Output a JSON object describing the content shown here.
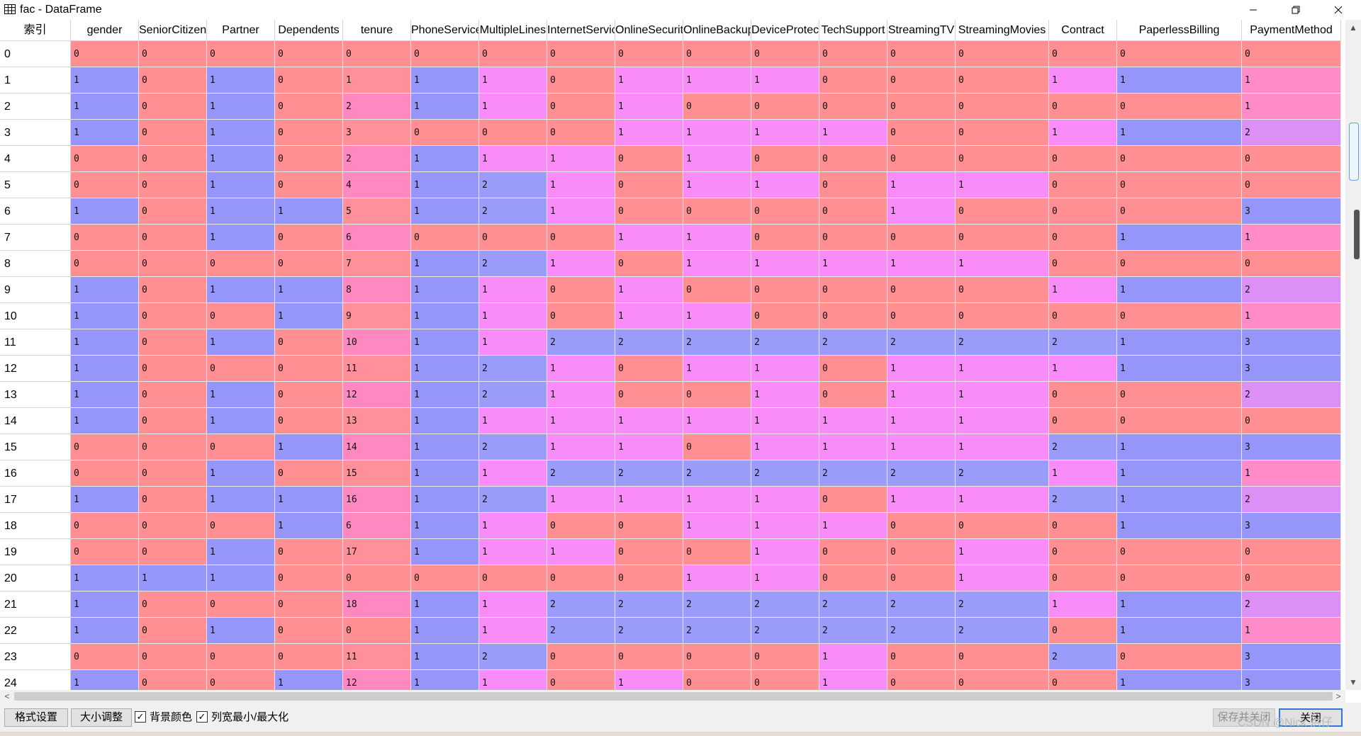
{
  "window": {
    "title": "fac - DataFrame",
    "icon": "table-icon"
  },
  "table": {
    "index_header": "索引",
    "columns": [
      "gender",
      "SeniorCitizen",
      "Partner",
      "Dependents",
      "tenure",
      "PhoneService",
      "MultipleLines",
      "InternetService",
      "OnlineSecurity",
      "OnlineBackup",
      "DeviceProtection",
      "TechSupport",
      "StreamingTV",
      "StreamingMovies",
      "Contract",
      "PaperlessBilling",
      "PaymentMethod"
    ],
    "rows": [
      {
        "index": "0",
        "values": [
          "0",
          "0",
          "0",
          "0",
          "0",
          "0",
          "0",
          "0",
          "0",
          "0",
          "0",
          "0",
          "0",
          "0",
          "0",
          "0",
          "0"
        ]
      },
      {
        "index": "1",
        "values": [
          "1",
          "0",
          "1",
          "0",
          "1",
          "1",
          "1",
          "0",
          "1",
          "1",
          "1",
          "0",
          "0",
          "0",
          "1",
          "1",
          "1"
        ]
      },
      {
        "index": "2",
        "values": [
          "1",
          "0",
          "1",
          "0",
          "2",
          "1",
          "1",
          "0",
          "1",
          "0",
          "0",
          "0",
          "0",
          "0",
          "0",
          "0",
          "1"
        ]
      },
      {
        "index": "3",
        "values": [
          "1",
          "0",
          "1",
          "0",
          "3",
          "0",
          "0",
          "0",
          "1",
          "1",
          "1",
          "1",
          "0",
          "0",
          "1",
          "1",
          "2"
        ]
      },
      {
        "index": "4",
        "values": [
          "0",
          "0",
          "1",
          "0",
          "2",
          "1",
          "1",
          "1",
          "0",
          "1",
          "0",
          "0",
          "0",
          "0",
          "0",
          "0",
          "0"
        ]
      },
      {
        "index": "5",
        "values": [
          "0",
          "0",
          "1",
          "0",
          "4",
          "1",
          "2",
          "1",
          "0",
          "1",
          "1",
          "0",
          "1",
          "1",
          "0",
          "0",
          "0"
        ]
      },
      {
        "index": "6",
        "values": [
          "1",
          "0",
          "1",
          "1",
          "5",
          "1",
          "2",
          "1",
          "0",
          "0",
          "0",
          "0",
          "1",
          "0",
          "0",
          "0",
          "3"
        ]
      },
      {
        "index": "7",
        "values": [
          "0",
          "0",
          "1",
          "0",
          "6",
          "0",
          "0",
          "0",
          "1",
          "1",
          "0",
          "0",
          "0",
          "0",
          "0",
          "1",
          "1"
        ]
      },
      {
        "index": "8",
        "values": [
          "0",
          "0",
          "0",
          "0",
          "7",
          "1",
          "2",
          "1",
          "0",
          "1",
          "1",
          "1",
          "1",
          "1",
          "0",
          "0",
          "0"
        ]
      },
      {
        "index": "9",
        "values": [
          "1",
          "0",
          "1",
          "1",
          "8",
          "1",
          "1",
          "0",
          "1",
          "0",
          "0",
          "0",
          "0",
          "0",
          "1",
          "1",
          "2"
        ]
      },
      {
        "index": "10",
        "values": [
          "1",
          "0",
          "0",
          "1",
          "9",
          "1",
          "1",
          "0",
          "1",
          "1",
          "0",
          "0",
          "0",
          "0",
          "0",
          "0",
          "1"
        ]
      },
      {
        "index": "11",
        "values": [
          "1",
          "0",
          "1",
          "0",
          "10",
          "1",
          "1",
          "2",
          "2",
          "2",
          "2",
          "2",
          "2",
          "2",
          "2",
          "1",
          "3"
        ]
      },
      {
        "index": "12",
        "values": [
          "1",
          "0",
          "0",
          "0",
          "11",
          "1",
          "2",
          "1",
          "0",
          "1",
          "1",
          "0",
          "1",
          "1",
          "1",
          "1",
          "3"
        ]
      },
      {
        "index": "13",
        "values": [
          "1",
          "0",
          "1",
          "0",
          "12",
          "1",
          "2",
          "1",
          "0",
          "0",
          "1",
          "0",
          "1",
          "1",
          "0",
          "0",
          "2"
        ]
      },
      {
        "index": "14",
        "values": [
          "1",
          "0",
          "1",
          "0",
          "13",
          "1",
          "1",
          "1",
          "1",
          "1",
          "1",
          "1",
          "1",
          "1",
          "0",
          "0",
          "0"
        ]
      },
      {
        "index": "15",
        "values": [
          "0",
          "0",
          "0",
          "1",
          "14",
          "1",
          "2",
          "1",
          "1",
          "0",
          "1",
          "1",
          "1",
          "1",
          "2",
          "1",
          "3"
        ]
      },
      {
        "index": "16",
        "values": [
          "0",
          "0",
          "1",
          "0",
          "15",
          "1",
          "1",
          "2",
          "2",
          "2",
          "2",
          "2",
          "2",
          "2",
          "1",
          "1",
          "1"
        ]
      },
      {
        "index": "17",
        "values": [
          "1",
          "0",
          "1",
          "1",
          "16",
          "1",
          "2",
          "1",
          "1",
          "1",
          "1",
          "0",
          "1",
          "1",
          "2",
          "1",
          "2"
        ]
      },
      {
        "index": "18",
        "values": [
          "0",
          "0",
          "0",
          "1",
          "6",
          "1",
          "1",
          "0",
          "0",
          "1",
          "1",
          "1",
          "0",
          "0",
          "0",
          "1",
          "3"
        ]
      },
      {
        "index": "19",
        "values": [
          "0",
          "0",
          "1",
          "0",
          "17",
          "1",
          "1",
          "1",
          "0",
          "0",
          "1",
          "0",
          "0",
          "1",
          "0",
          "0",
          "0"
        ]
      },
      {
        "index": "20",
        "values": [
          "1",
          "1",
          "1",
          "0",
          "0",
          "0",
          "0",
          "0",
          "0",
          "1",
          "1",
          "0",
          "0",
          "1",
          "0",
          "0",
          "0"
        ]
      },
      {
        "index": "21",
        "values": [
          "1",
          "0",
          "0",
          "0",
          "18",
          "1",
          "1",
          "2",
          "2",
          "2",
          "2",
          "2",
          "2",
          "2",
          "1",
          "1",
          "2"
        ]
      },
      {
        "index": "22",
        "values": [
          "1",
          "0",
          "1",
          "0",
          "0",
          "1",
          "1",
          "2",
          "2",
          "2",
          "2",
          "2",
          "2",
          "2",
          "0",
          "1",
          "1"
        ]
      },
      {
        "index": "23",
        "values": [
          "0",
          "0",
          "0",
          "0",
          "11",
          "1",
          "2",
          "0",
          "0",
          "0",
          "0",
          "1",
          "0",
          "0",
          "2",
          "0",
          "3"
        ]
      },
      {
        "index": "24",
        "values": [
          "1",
          "0",
          "0",
          "1",
          "12",
          "1",
          "1",
          "0",
          "1",
          "0",
          "0",
          "1",
          "0",
          "0",
          "0",
          "1",
          "3"
        ]
      }
    ]
  },
  "colors": {
    "zero": "#ff8f93",
    "one_binary": "#9696fa",
    "one_multi": "#fa8cfa",
    "two_multi": "#9a9bfb",
    "two_four": "#dc8ff5",
    "three_four": "#9696fa",
    "one_four": "#ff8cc8",
    "tenure_low": "#ff909a",
    "tenure_high": "#ff88c0"
  },
  "toolbar": {
    "format_settings": "格式设置",
    "resize": "大小调整",
    "bg_color": "背景颜色",
    "col_width": "列宽最小/最大化",
    "bg_color_checked": "☑",
    "col_width_checked": "☑",
    "save_close": "保存并关闭",
    "close": "关闭",
    "watermark": "CSDN @Nick 洪仔"
  }
}
